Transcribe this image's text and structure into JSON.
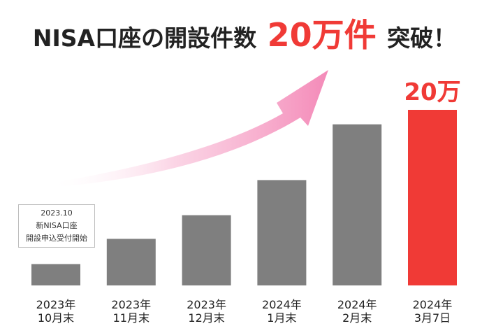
{
  "headline": {
    "prefix": "NISA口座の開設件数",
    "highlight": "20万件",
    "suffix": "突破！"
  },
  "note": {
    "lines": [
      "2023.10",
      "新NISA口座",
      "開設申込受付開始"
    ]
  },
  "colors": {
    "bar": "#7f7f7f",
    "highlight_bar": "#f03a36",
    "arrow": "#f59bc0",
    "text": "#222222"
  },
  "chart_data": {
    "type": "bar",
    "title": "NISA口座の開設件数20万件突破！",
    "categories": [
      [
        "2023年",
        "10月末"
      ],
      [
        "2023年",
        "11月末"
      ],
      [
        "2023年",
        "12月末"
      ],
      [
        "2024年",
        "1月末"
      ],
      [
        "2024年",
        "2月末"
      ],
      [
        "2024年",
        "3月7日"
      ]
    ],
    "values": [
      2.8,
      6.1,
      9.2,
      13.8,
      21.1,
      23.0
    ],
    "ylim": [
      0,
      23.0
    ],
    "highlight_index": 5,
    "highlight_label": "20万",
    "grid": false,
    "legend": "none"
  }
}
